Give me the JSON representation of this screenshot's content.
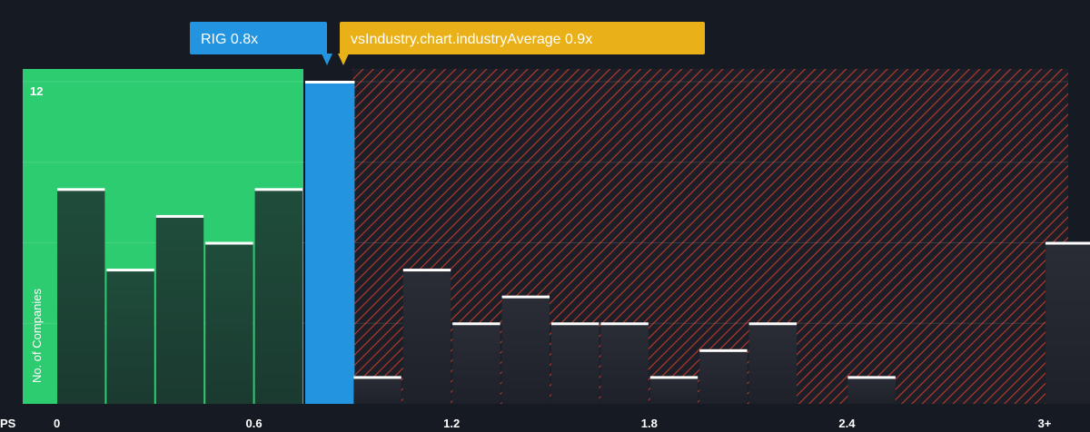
{
  "chart_data": {
    "type": "bar",
    "title": "",
    "xlabel": "PS",
    "ylabel": "No. of Companies",
    "x_ticks": [
      "0",
      "0.6",
      "1.2",
      "1.8",
      "2.4",
      "3+"
    ],
    "y_ticks": [
      "12"
    ],
    "ylim": [
      0,
      12
    ],
    "bins": [
      {
        "x0": 0.0,
        "x1": 0.15,
        "value": 8
      },
      {
        "x0": 0.15,
        "x1": 0.3,
        "value": 5
      },
      {
        "x0": 0.3,
        "x1": 0.45,
        "value": 7
      },
      {
        "x0": 0.45,
        "x1": 0.6,
        "value": 6
      },
      {
        "x0": 0.6,
        "x1": 0.75,
        "value": 8
      },
      {
        "x0": 0.75,
        "x1": 0.9,
        "value": 12,
        "highlight": true
      },
      {
        "x0": 0.9,
        "x1": 1.05,
        "value": 1
      },
      {
        "x0": 1.05,
        "x1": 1.2,
        "value": 5
      },
      {
        "x0": 1.2,
        "x1": 1.35,
        "value": 3
      },
      {
        "x0": 1.35,
        "x1": 1.5,
        "value": 4
      },
      {
        "x0": 1.5,
        "x1": 1.65,
        "value": 3
      },
      {
        "x0": 1.65,
        "x1": 1.8,
        "value": 3
      },
      {
        "x0": 1.8,
        "x1": 1.95,
        "value": 1
      },
      {
        "x0": 1.95,
        "x1": 2.1,
        "value": 2
      },
      {
        "x0": 2.1,
        "x1": 2.25,
        "value": 3
      },
      {
        "x0": 2.25,
        "x1": 2.4,
        "value": 0
      },
      {
        "x0": 2.4,
        "x1": 2.55,
        "value": 1
      },
      {
        "x0": 2.55,
        "x1": 2.7,
        "value": 0
      },
      {
        "x0": 2.7,
        "x1": 2.85,
        "value": 0
      },
      {
        "x0": 2.85,
        "x1": 3.0,
        "value": 0
      },
      {
        "x0": 3.0,
        "x1": 3.15,
        "value": 6
      }
    ],
    "company": {
      "label": "RIG 0.8x",
      "value": 0.8
    },
    "industry": {
      "label": "vsIndustry.chart.industryAverage 0.9x",
      "value": 0.9
    },
    "fair_range": [
      0,
      0.75
    ],
    "grid": true,
    "colors": {
      "background": "#161b23",
      "undervalued_zone": "#2ecc71",
      "overvalued_hatch": "#c0392b",
      "company_bar": "#2394e0",
      "industry_badge": "#e9b017",
      "bar_dark": "#1e4a3a",
      "bar_top": "#ffffff"
    }
  }
}
